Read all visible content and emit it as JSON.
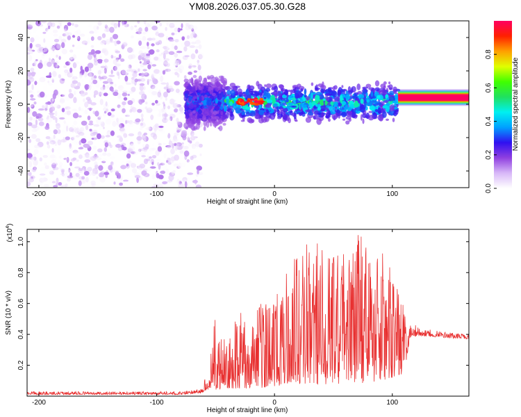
{
  "chart_data": [
    {
      "type": "heatmap",
      "title": "YM08.2026.037.05.30.G28",
      "xlabel": "Height of straight line (km)",
      "ylabel": "Frequency (Hz)",
      "xlim": [
        -210,
        165
      ],
      "ylim": [
        -50,
        50
      ],
      "xticks": [
        "-200",
        "-100",
        "0",
        "100"
      ],
      "xtick_values": [
        -200,
        -100,
        0,
        100
      ],
      "yticks": [
        "-40",
        "-20",
        "0",
        "20",
        "40"
      ],
      "ytick_values": [
        -40,
        -20,
        0,
        20,
        40
      ],
      "colorbar": {
        "label": "Normalized spectral amplitude",
        "ticks": [
          "0.0",
          "0.2",
          "0.4",
          "0.6",
          "0.8"
        ],
        "tick_values": [
          0.0,
          0.2,
          0.4,
          0.6,
          0.8
        ],
        "range": [
          0,
          1
        ],
        "colors": [
          "#ffffff",
          "#d8b8f8",
          "#9040e0",
          "#3010f0",
          "#00a0ff",
          "#00f0f0",
          "#20e060",
          "#40ff00",
          "#e0ff00",
          "#ffa000",
          "#ff2000",
          "#ff0060"
        ]
      },
      "regions": [
        {
          "name": "noise",
          "x_range": [
            -210,
            -62
          ],
          "f_range": [
            -50,
            50
          ],
          "amplitude": [
            0.0,
            0.15
          ]
        },
        {
          "name": "signal-onset",
          "x_range": [
            -75,
            -42
          ],
          "f_range": [
            -12,
            14
          ],
          "amplitude": [
            0.1,
            0.4
          ]
        },
        {
          "name": "signal",
          "x_range": [
            -42,
            105
          ],
          "f_range": [
            -10,
            10
          ],
          "amplitude": [
            0.1,
            0.6
          ],
          "center_f": 1
        },
        {
          "name": "peaks",
          "x_range": [
            -30,
            -10
          ],
          "f_range": [
            0,
            3
          ],
          "amplitude": [
            0.8,
            1.0
          ]
        },
        {
          "name": "steady-tone",
          "x_range": [
            105,
            165
          ],
          "f_range": [
            2,
            6
          ],
          "amplitude": [
            0.85,
            1.0
          ],
          "center_f": 4
        }
      ]
    },
    {
      "type": "line",
      "xlabel": "Height of straight line (km)",
      "ylabel": "SNR (10 * v/v)",
      "y_multiplier": "(x10",
      "y_multiplier_exp": "4",
      "y_multiplier_close": ")",
      "xlim": [
        -210,
        165
      ],
      "ylim": [
        0,
        1.08
      ],
      "xticks": [
        "-200",
        "-100",
        "0",
        "100"
      ],
      "xtick_values": [
        -200,
        -100,
        0,
        100
      ],
      "yticks": [
        "0.2",
        "0.4",
        "0.6",
        "0.8",
        "1.0"
      ],
      "ytick_values": [
        0.2,
        0.4,
        0.6,
        0.8,
        1.0
      ],
      "color": "#e83030",
      "series": [
        {
          "name": "SNR envelope",
          "x": [
            -210,
            -80,
            -62,
            -55,
            -50,
            -45,
            -40,
            -30,
            -20,
            -10,
            0,
            10,
            20,
            30,
            40,
            50,
            60,
            70,
            80,
            90,
            100,
            110,
            115,
            125,
            140,
            165
          ],
          "min": [
            0.01,
            0.01,
            0.02,
            0.05,
            0.04,
            0.05,
            0.05,
            0.05,
            0.05,
            0.05,
            0.06,
            0.08,
            0.08,
            0.08,
            0.07,
            0.08,
            0.08,
            0.08,
            0.09,
            0.1,
            0.12,
            0.14,
            0.38,
            0.39,
            0.38,
            0.37
          ],
          "max": [
            0.03,
            0.03,
            0.05,
            0.2,
            0.56,
            0.4,
            0.44,
            0.55,
            0.5,
            0.62,
            0.62,
            0.82,
            0.92,
            1.02,
            0.98,
            1.04,
            1.0,
            1.08,
            1.06,
            0.96,
            0.8,
            0.62,
            0.48,
            0.44,
            0.42,
            0.4
          ]
        }
      ]
    }
  ]
}
